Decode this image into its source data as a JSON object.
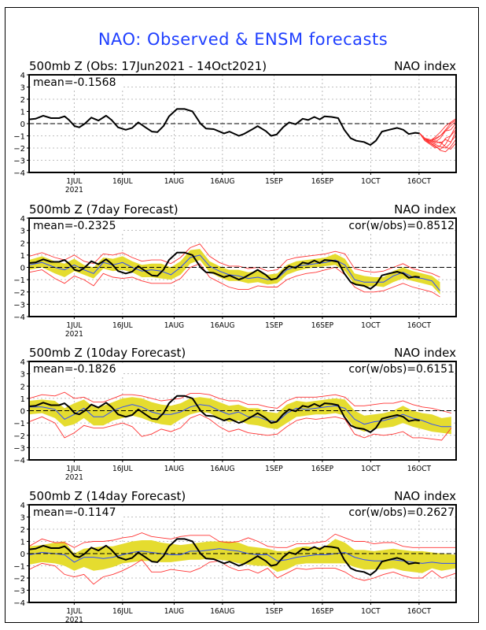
{
  "title": "NAO: Observed & ENSM forecasts",
  "colors": {
    "title": "#1f3fff",
    "observed": "#000000",
    "ens_member": "#ff3333",
    "spread_fill": "#e5dc2f",
    "ens_mean": "#2b4bff",
    "envelope": "#ff3333"
  },
  "chart_data": [
    {
      "type": "line",
      "title": "500mb Z (Obs: 17Jun2021 - 14Oct2021)",
      "right_label": "NAO index",
      "annotation_left": "mean=-0.1568",
      "annotation_right": "",
      "ylim": [
        -4,
        4
      ],
      "yticks": [
        "4",
        "3",
        "2",
        "1",
        "0",
        "-1",
        "-2",
        "-3",
        "-4"
      ],
      "x_unit": "days since 17Jun2021",
      "xlim": [
        0,
        132.5
      ],
      "xticks": [
        {
          "day": 14,
          "label": "1JUL",
          "sub": "2021"
        },
        {
          "day": 29,
          "label": "16JUL"
        },
        {
          "day": 45,
          "label": "1AUG"
        },
        {
          "day": 60,
          "label": "16AUG"
        },
        {
          "day": 76,
          "label": "1SEP"
        },
        {
          "day": 91,
          "label": "16SEP"
        },
        {
          "day": 106,
          "label": "1OCT"
        },
        {
          "day": 121,
          "label": "16OCT"
        }
      ],
      "grid": true,
      "series": [
        {
          "name": "observed",
          "x": [
            0,
            2,
            4.4,
            6.8,
            9.3,
            11,
            12.4,
            14.1,
            15.6,
            17.3,
            19.3,
            21.5,
            23.9,
            25.6,
            27.6,
            30,
            32,
            33.9,
            36.1,
            38.1,
            39.8,
            41.7,
            43.4,
            45.9,
            48.3,
            50.7,
            53.2,
            54.9,
            57.3,
            60.5,
            62.2,
            65.1,
            66.6,
            69,
            70.9,
            73.4,
            75.1,
            76.8,
            78.8,
            80.7,
            82.7,
            84.9,
            86.6,
            88.5,
            90.2,
            91.7,
            93.9,
            95.9,
            97.8,
            99.8,
            101.5,
            103.9,
            105.9,
            107.6,
            109.5,
            111.7,
            114.2,
            116.1,
            117.8,
            119.8,
            121.2
          ],
          "y": [
            0.35,
            0.4,
            0.65,
            0.45,
            0.45,
            0.6,
            0.3,
            -0.2,
            -0.3,
            0,
            0.5,
            0.25,
            0.65,
            0.3,
            -0.3,
            -0.5,
            -0.35,
            0.1,
            -0.3,
            -0.65,
            -0.7,
            -0.2,
            0.6,
            1.2,
            1.2,
            1.0,
            0.0,
            -0.4,
            -0.45,
            -0.8,
            -0.65,
            -1.0,
            -0.85,
            -0.5,
            -0.2,
            -0.6,
            -1.0,
            -0.9,
            -0.3,
            0.1,
            -0.05,
            0.4,
            0.3,
            0.55,
            0.35,
            0.6,
            0.55,
            0.45,
            -0.5,
            -1.2,
            -1.4,
            -1.5,
            -1.75,
            -1.4,
            -0.65,
            -0.5,
            -0.35,
            -0.5,
            -0.85,
            -0.75,
            -0.8
          ]
        },
        {
          "name": "ensemble_members",
          "start_day": 121.2,
          "start_value": -0.8,
          "members": [
            [
              -0.8,
              -1.2,
              -1.4,
              -1.3,
              -1.0,
              -0.5,
              0.0,
              0.3
            ],
            [
              -0.8,
              -1.3,
              -1.6,
              -1.9,
              -2.1,
              -1.7,
              -1.0,
              -0.2
            ],
            [
              -0.8,
              -1.2,
              -1.3,
              -1.5,
              -1.2,
              -0.6,
              -0.2,
              0.2
            ],
            [
              -0.8,
              -1.4,
              -1.6,
              -1.8,
              -2.2,
              -2.3,
              -1.9,
              -1.3
            ],
            [
              -0.8,
              -1.3,
              -1.5,
              -1.4,
              -1.6,
              -1.3,
              -1.5,
              -1.0
            ],
            [
              -0.8,
              -1.2,
              -1.5,
              -1.7,
              -1.9,
              -2.0,
              -1.6,
              -0.6
            ],
            [
              -0.8,
              -1.3,
              -1.4,
              -1.1,
              -0.7,
              -0.2,
              0.1,
              0.4
            ],
            [
              -0.8,
              -1.4,
              -1.7,
              -2.0,
              -1.8,
              -1.2,
              -1.0,
              -0.5
            ],
            [
              -0.8,
              -1.2,
              -1.4,
              -1.6,
              -1.5,
              -1.9,
              -2.1,
              -1.6
            ],
            [
              -0.8,
              -1.3,
              -1.4,
              -1.2,
              -1.0,
              -0.6,
              -0.5,
              0.0
            ]
          ],
          "step_days": 1.6
        }
      ]
    },
    {
      "type": "line",
      "title": "500mb Z (7day Forecast)",
      "right_label": "NAO index",
      "annotation_left": "mean=-0.2325",
      "annotation_right": "cor(w/obs)=0.8512",
      "ylim": [
        -4,
        4
      ],
      "grid": true,
      "forecast": {
        "x": [
          0,
          4,
          8,
          11,
          14,
          17,
          20,
          23,
          26,
          29,
          32,
          35,
          38,
          41,
          44,
          47,
          50,
          53,
          56,
          59,
          62,
          65,
          68,
          71,
          74,
          77,
          80,
          83,
          86,
          89,
          92,
          95,
          98,
          101,
          104,
          107,
          110,
          113,
          116,
          119,
          122,
          125,
          127.5
        ],
        "mean": [
          0.2,
          0.4,
          0.0,
          -0.2,
          0.2,
          -0.2,
          -0.5,
          0.4,
          0.2,
          0.4,
          0.0,
          -0.3,
          -0.2,
          -0.3,
          -0.6,
          0.0,
          0.8,
          1.0,
          0.1,
          -0.3,
          -0.6,
          -0.7,
          -0.9,
          -0.8,
          -1.0,
          -0.9,
          -0.2,
          0.1,
          0.2,
          0.3,
          0.4,
          0.6,
          0.2,
          -1.0,
          -1.2,
          -1.2,
          -1.2,
          -0.7,
          -0.4,
          -0.8,
          -0.9,
          -1.1,
          -1.9
        ],
        "lo": [
          -0.2,
          0.0,
          -0.5,
          -0.8,
          -0.3,
          -0.6,
          -0.9,
          -0.1,
          -0.3,
          -0.2,
          -0.4,
          -0.8,
          -0.8,
          -0.9,
          -1.0,
          -0.6,
          0.3,
          0.6,
          -0.4,
          -0.8,
          -1.1,
          -1.1,
          -1.3,
          -1.2,
          -1.4,
          -1.3,
          -0.6,
          -0.3,
          -0.1,
          0.0,
          0.1,
          0.2,
          -0.3,
          -1.4,
          -1.6,
          -1.5,
          -1.6,
          -1.2,
          -0.9,
          -1.1,
          -1.3,
          -1.5,
          -2.2
        ],
        "hi": [
          0.6,
          0.9,
          0.5,
          0.3,
          0.7,
          0.2,
          0.0,
          0.8,
          0.7,
          0.9,
          0.5,
          0.2,
          0.3,
          0.3,
          0.0,
          0.5,
          1.4,
          1.5,
          0.5,
          0.1,
          -0.2,
          -0.2,
          -0.4,
          -0.3,
          -0.6,
          -0.5,
          0.2,
          0.5,
          0.6,
          0.7,
          0.8,
          1.1,
          0.7,
          -0.5,
          -0.7,
          -0.8,
          -0.8,
          -0.3,
          0.0,
          -0.3,
          -0.5,
          -0.7,
          -1.2
        ],
        "env_lo": [
          -0.4,
          -0.2,
          -0.9,
          -1.3,
          -0.7,
          -1.0,
          -1.5,
          -0.5,
          -0.8,
          -0.9,
          -0.8,
          -1.1,
          -1.3,
          -1.3,
          -1.3,
          -0.9,
          0.0,
          0.3,
          -0.8,
          -1.2,
          -1.6,
          -1.8,
          -1.8,
          -1.5,
          -1.6,
          -1.6,
          -1.0,
          -0.7,
          -0.5,
          -0.4,
          -0.2,
          0.0,
          -0.6,
          -1.6,
          -2.0,
          -2.0,
          -1.9,
          -1.6,
          -1.3,
          -1.6,
          -1.8,
          -2.0,
          -2.4
        ],
        "env_hi": [
          0.9,
          1.2,
          0.8,
          0.6,
          1.0,
          0.5,
          0.3,
          1.1,
          1.0,
          1.2,
          0.8,
          0.5,
          0.6,
          0.6,
          0.3,
          0.8,
          1.6,
          1.9,
          0.9,
          0.4,
          0.1,
          0.1,
          -0.1,
          0.0,
          -0.3,
          -0.2,
          0.6,
          0.8,
          0.9,
          1.0,
          1.1,
          1.3,
          1.1,
          -0.1,
          -0.3,
          -0.4,
          -0.3,
          0.0,
          0.3,
          -0.1,
          -0.3,
          -0.5,
          -0.8
        ]
      }
    },
    {
      "type": "line",
      "title": "500mb Z (10day Forecast)",
      "right_label": "NAO index",
      "annotation_left": "mean=-0.1826",
      "annotation_right": "cor(w/obs)=0.6151",
      "ylim": [
        -4,
        4
      ],
      "grid": true,
      "forecast": {
        "x": [
          0,
          4,
          8,
          11,
          14,
          17,
          20,
          23,
          26,
          29,
          32,
          35,
          38,
          41,
          44,
          47,
          50,
          53,
          56,
          59,
          62,
          65,
          68,
          71,
          74,
          77,
          80,
          83,
          86,
          89,
          92,
          95,
          98,
          101,
          104,
          107,
          110,
          113,
          116,
          119,
          122,
          125,
          128,
          131
        ],
        "mean": [
          0.3,
          0.3,
          0.1,
          -0.7,
          -0.3,
          0.2,
          -0.5,
          -0.5,
          0.0,
          0.3,
          0.5,
          0.3,
          -0.1,
          -0.3,
          -0.3,
          -0.1,
          0.3,
          0.5,
          0.4,
          0.0,
          -0.3,
          -0.1,
          -0.5,
          -0.5,
          -0.8,
          -0.9,
          -0.2,
          0.2,
          0.1,
          0.2,
          0.3,
          0.4,
          0.2,
          -0.7,
          -1.1,
          -0.9,
          -0.8,
          -0.6,
          -0.3,
          -0.6,
          -0.8,
          -1.1,
          -1.3,
          -1.3
        ],
        "lo": [
          -0.3,
          -0.2,
          -0.6,
          -1.3,
          -1.1,
          -0.6,
          -1.2,
          -1.2,
          -0.8,
          -0.6,
          -0.4,
          -0.6,
          -0.9,
          -1.1,
          -1.2,
          -0.7,
          -0.3,
          -0.1,
          -0.2,
          -0.6,
          -0.9,
          -0.8,
          -1.1,
          -1.2,
          -1.4,
          -1.5,
          -1.0,
          -0.5,
          -0.4,
          -0.3,
          -0.3,
          -0.2,
          -0.4,
          -1.4,
          -1.7,
          -1.5,
          -1.4,
          -1.3,
          -1.0,
          -1.3,
          -1.5,
          -1.7,
          -1.8,
          -1.9
        ],
        "hi": [
          0.8,
          0.9,
          0.8,
          0.2,
          0.6,
          0.9,
          0.3,
          0.4,
          0.7,
          1.0,
          1.1,
          1.0,
          0.7,
          0.5,
          0.4,
          0.6,
          1.0,
          1.1,
          1.0,
          0.7,
          0.4,
          0.5,
          0.2,
          0.2,
          -0.1,
          -0.2,
          0.5,
          0.8,
          0.7,
          0.8,
          0.9,
          1.0,
          0.9,
          0.0,
          -0.4,
          -0.3,
          -0.2,
          0.0,
          0.4,
          0.0,
          -0.2,
          -0.3,
          -0.6,
          -0.5
        ],
        "env_lo": [
          -0.9,
          -0.5,
          -1.0,
          -2.2,
          -1.8,
          -1.2,
          -1.4,
          -1.4,
          -1.2,
          -1.0,
          -1.3,
          -2.1,
          -1.9,
          -1.5,
          -1.7,
          -1.4,
          -0.6,
          -0.3,
          -0.7,
          -1.3,
          -1.7,
          -1.5,
          -1.8,
          -1.9,
          -2.0,
          -1.9,
          -1.3,
          -0.8,
          -0.6,
          -0.7,
          -0.6,
          -0.5,
          -0.7,
          -1.9,
          -2.2,
          -1.9,
          -2.0,
          -1.9,
          -1.7,
          -2.2,
          -2.2,
          -2.3,
          -2.4,
          -1.4
        ],
        "env_hi": [
          1.0,
          1.3,
          1.2,
          1.5,
          1.0,
          1.1,
          0.7,
          0.7,
          1.0,
          1.3,
          1.3,
          1.2,
          1.0,
          0.8,
          0.9,
          1.0,
          1.4,
          1.4,
          1.3,
          1.0,
          0.8,
          0.8,
          0.5,
          0.5,
          0.3,
          0.2,
          0.8,
          1.1,
          1.1,
          1.1,
          1.2,
          1.3,
          1.1,
          0.4,
          0.4,
          0.5,
          0.6,
          0.6,
          0.8,
          0.5,
          0.3,
          0.2,
          0.0,
          -0.2
        ]
      }
    },
    {
      "type": "line",
      "title": "500mb Z (14day Forecast)",
      "right_label": "NAO index",
      "annotation_left": "mean=-0.1147",
      "annotation_right": "cor(w/obs)=0.2627",
      "ylim": [
        -4,
        4
      ],
      "grid": true,
      "forecast": {
        "x": [
          0,
          4,
          8,
          11,
          14,
          17,
          20,
          23,
          26,
          29,
          32,
          35,
          38,
          41,
          44,
          47,
          50,
          53,
          56,
          59,
          62,
          65,
          68,
          71,
          74,
          77,
          80,
          83,
          86,
          89,
          92,
          95,
          98,
          101,
          104,
          107,
          110,
          113,
          116,
          119,
          122,
          125,
          128,
          132.5
        ],
        "mean": [
          -0.1,
          0.1,
          0.0,
          -0.1,
          -0.7,
          -0.3,
          -0.3,
          -0.4,
          -0.3,
          -0.1,
          0.1,
          0.2,
          0.1,
          0.0,
          -0.1,
          -0.1,
          0.2,
          0.2,
          0.3,
          0.4,
          0.3,
          0.2,
          0.0,
          -0.1,
          -0.1,
          -0.6,
          -0.5,
          -0.3,
          -0.2,
          -0.1,
          -0.1,
          0.0,
          0.1,
          -0.3,
          -0.5,
          -0.6,
          -0.6,
          -0.5,
          -0.6,
          -0.7,
          -0.8,
          -0.7,
          -0.8,
          -0.8
        ],
        "lo": [
          -0.9,
          -0.7,
          -0.8,
          -1.0,
          -1.4,
          -1.1,
          -1.4,
          -1.3,
          -1.1,
          -0.8,
          -0.7,
          -0.6,
          -0.6,
          -0.7,
          -0.7,
          -0.6,
          -0.5,
          -0.5,
          -0.4,
          -0.5,
          -0.6,
          -0.8,
          -0.9,
          -1.0,
          -1.0,
          -1.5,
          -1.3,
          -0.9,
          -0.8,
          -0.8,
          -0.8,
          -0.8,
          -0.8,
          -1.1,
          -1.3,
          -1.3,
          -1.3,
          -1.2,
          -1.4,
          -1.5,
          -1.6,
          -1.2,
          -1.4,
          -1.2
        ],
        "hi": [
          0.6,
          0.7,
          0.9,
          1.0,
          0.0,
          0.4,
          0.5,
          0.6,
          0.6,
          0.8,
          1.0,
          1.1,
          1.1,
          0.9,
          0.8,
          0.7,
          0.8,
          0.9,
          1.0,
          1.0,
          1.0,
          0.9,
          0.6,
          0.5,
          0.4,
          0.2,
          0.2,
          0.5,
          0.6,
          0.5,
          0.6,
          1.2,
          0.9,
          0.3,
          0.3,
          0.2,
          0.3,
          0.4,
          0.3,
          0.2,
          0.2,
          0.1,
          0.0,
          -0.1
        ],
        "env_lo": [
          -1.3,
          -0.8,
          -1.0,
          -1.7,
          -1.9,
          -1.7,
          -2.5,
          -1.9,
          -1.7,
          -1.4,
          -1.0,
          -0.5,
          -1.5,
          -1.5,
          -1.3,
          -1.4,
          -1.5,
          -1.2,
          -0.7,
          -0.6,
          -1.1,
          -1.4,
          -1.3,
          -1.6,
          -1.2,
          -2.0,
          -1.6,
          -1.2,
          -1.3,
          -1.2,
          -1.2,
          -1.2,
          -1.5,
          -2.0,
          -2.2,
          -2.0,
          -1.7,
          -1.5,
          -1.8,
          -2.0,
          -2.0,
          -1.4,
          -2.0,
          -1.6
        ],
        "env_hi": [
          0.6,
          1.2,
          0.9,
          0.9,
          0.5,
          0.9,
          1.0,
          1.0,
          1.1,
          1.3,
          1.4,
          1.7,
          1.4,
          1.3,
          1.2,
          1.4,
          1.5,
          1.5,
          1.5,
          1.0,
          0.9,
          1.0,
          1.3,
          1.0,
          0.6,
          0.5,
          0.5,
          0.8,
          0.8,
          0.9,
          1.0,
          1.6,
          1.3,
          1.0,
          1.0,
          0.8,
          0.9,
          0.9,
          0.6,
          0.5,
          0.5,
          0.5,
          0.5,
          0.5
        ]
      }
    }
  ]
}
